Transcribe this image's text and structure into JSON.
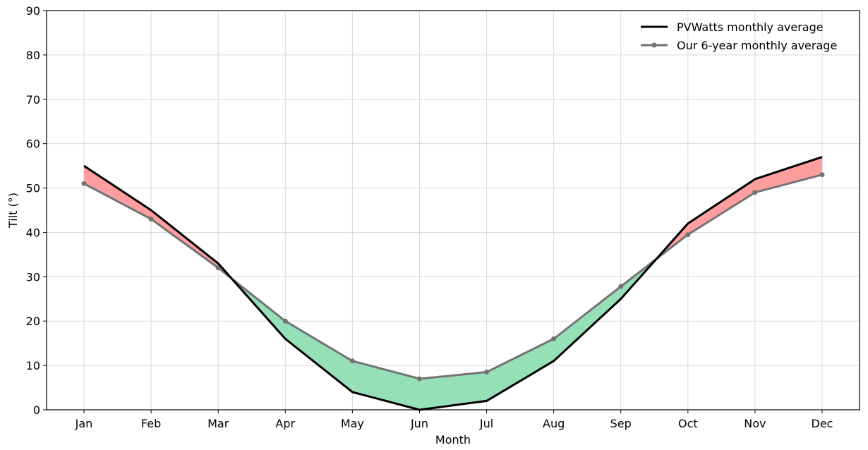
{
  "chart_data": {
    "type": "line",
    "title": "",
    "xlabel": "Month",
    "ylabel": "Tilt (°)",
    "categories": [
      "Jan",
      "Feb",
      "Mar",
      "Apr",
      "May",
      "Jun",
      "Jul",
      "Aug",
      "Sep",
      "Oct",
      "Nov",
      "Dec"
    ],
    "ylim": [
      0,
      90
    ],
    "yticks": [
      0,
      10,
      20,
      30,
      40,
      50,
      60,
      70,
      80,
      90
    ],
    "grid": true,
    "legend_position": "top-right",
    "series": [
      {
        "name": "PVWatts monthly average",
        "values": [
          55,
          45,
          33,
          16,
          4,
          0,
          2,
          11,
          25,
          42,
          52,
          57
        ],
        "color": "#000000",
        "marker": "none"
      },
      {
        "name": "Our 6-year monthly average",
        "values": [
          51,
          43,
          32,
          20,
          11,
          7,
          8.5,
          16,
          27.8,
          39.5,
          49,
          53
        ],
        "color": "#737373",
        "marker": "circle"
      }
    ],
    "fill_colors": {
      "pvwatts_higher": "#ff9e9e",
      "ours_higher": "#96e0b8"
    }
  }
}
